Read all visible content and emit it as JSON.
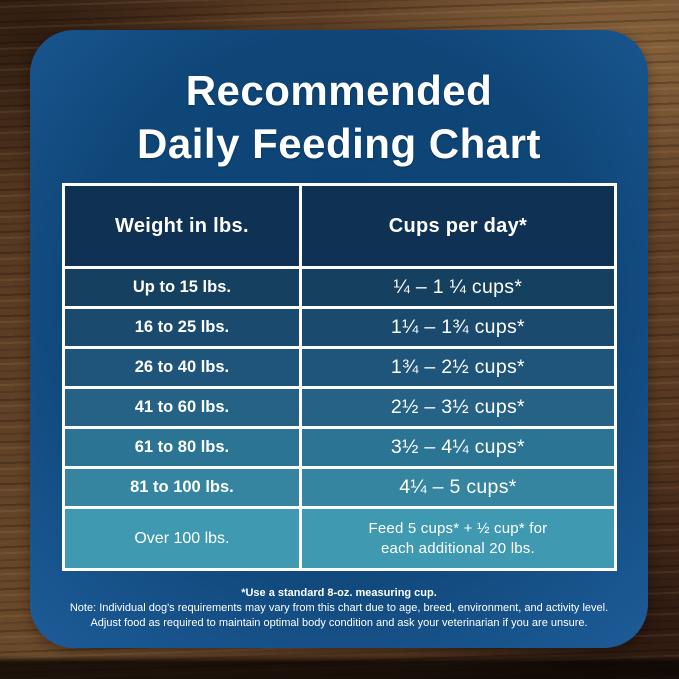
{
  "card": {
    "title_line1": "Recommended",
    "title_line2": "Daily Feeding Chart",
    "footnote": "*Use a standard 8-oz. measuring cup.",
    "note_line1": "Note: Individual dog's requirements may vary from this chart due to age, breed, environment, and activity level.",
    "note_line2": "Adjust food as required to maintain optimal body condition and ask your veterinarian if you are unsure."
  },
  "table": {
    "headers": {
      "weight": "Weight in lbs.",
      "cups": "Cups per day*"
    },
    "header_bg": "#0f3154",
    "rows": [
      {
        "weight": "Up to 15 lbs.",
        "cups": "¼ – 1 ¼ cups*",
        "bg": "#16405f"
      },
      {
        "weight": "16 to 25 lbs.",
        "cups": "1¼ – 1¾  cups*",
        "bg": "#1a4a6e"
      },
      {
        "weight": "26 to 40 lbs.",
        "cups": "1¾ – 2½ cups*",
        "bg": "#1f557a"
      },
      {
        "weight": "41 to 60 lbs.",
        "cups": "2½ – 3½ cups*",
        "bg": "#256286"
      },
      {
        "weight": "61 to 80 lbs.",
        "cups": "3½ – 4¼ cups*",
        "bg": "#2c7493"
      },
      {
        "weight": "81 to 100 lbs.",
        "cups": "4¼ – 5 cups*",
        "bg": "#3585a1"
      },
      {
        "weight": "Over 100 lbs.",
        "cups_line1": "Feed 5 cups* + ½ cup* for",
        "cups_line2": "each additional 20 lbs.",
        "bg": "#3f99b0"
      }
    ]
  },
  "colors": {
    "card_blue": "#0f4678",
    "card_blue_edge": "#1d5b97",
    "table_border": "#fdfdfd",
    "text": "#ffffff",
    "wood_brown": "#5e3f25"
  },
  "chart_data": {
    "type": "table",
    "title": "Recommended Daily Feeding Chart",
    "columns": [
      "Weight in lbs.",
      "Cups per day*"
    ],
    "rows": [
      [
        "Up to 15 lbs.",
        "¼ – 1 ¼ cups*"
      ],
      [
        "16 to 25 lbs.",
        "1¼ – 1¾ cups*"
      ],
      [
        "26 to 40 lbs.",
        "1¾ – 2½ cups*"
      ],
      [
        "41 to 60 lbs.",
        "2½ – 3½ cups*"
      ],
      [
        "61 to 80 lbs.",
        "3½ – 4¼ cups*"
      ],
      [
        "81 to 100 lbs.",
        "4¼ – 5 cups*"
      ],
      [
        "Over 100 lbs.",
        "Feed 5 cups* + ½ cup* for each additional 20 lbs."
      ]
    ],
    "numeric": [
      {
        "weight_lbs_min": 0,
        "weight_lbs_max": 15,
        "cups_min": 0.25,
        "cups_max": 1.25
      },
      {
        "weight_lbs_min": 16,
        "weight_lbs_max": 25,
        "cups_min": 1.25,
        "cups_max": 1.75
      },
      {
        "weight_lbs_min": 26,
        "weight_lbs_max": 40,
        "cups_min": 1.75,
        "cups_max": 2.5
      },
      {
        "weight_lbs_min": 41,
        "weight_lbs_max": 60,
        "cups_min": 2.5,
        "cups_max": 3.5
      },
      {
        "weight_lbs_min": 61,
        "weight_lbs_max": 80,
        "cups_min": 3.5,
        "cups_max": 4.25
      },
      {
        "weight_lbs_min": 81,
        "weight_lbs_max": 100,
        "cups_min": 4.25,
        "cups_max": 5
      },
      {
        "weight_lbs_min": 100,
        "weight_lbs_max": null,
        "rule": "Feed 5 cups plus 0.5 cup for each additional 20 lbs"
      }
    ],
    "footnotes": [
      "*Use a standard 8-oz. measuring cup.",
      "Note: Individual dog's requirements may vary from this chart due to age, breed, environment, and activity level.",
      "Adjust food as required to maintain optimal body condition and ask your veterinarian if you are unsure."
    ]
  }
}
